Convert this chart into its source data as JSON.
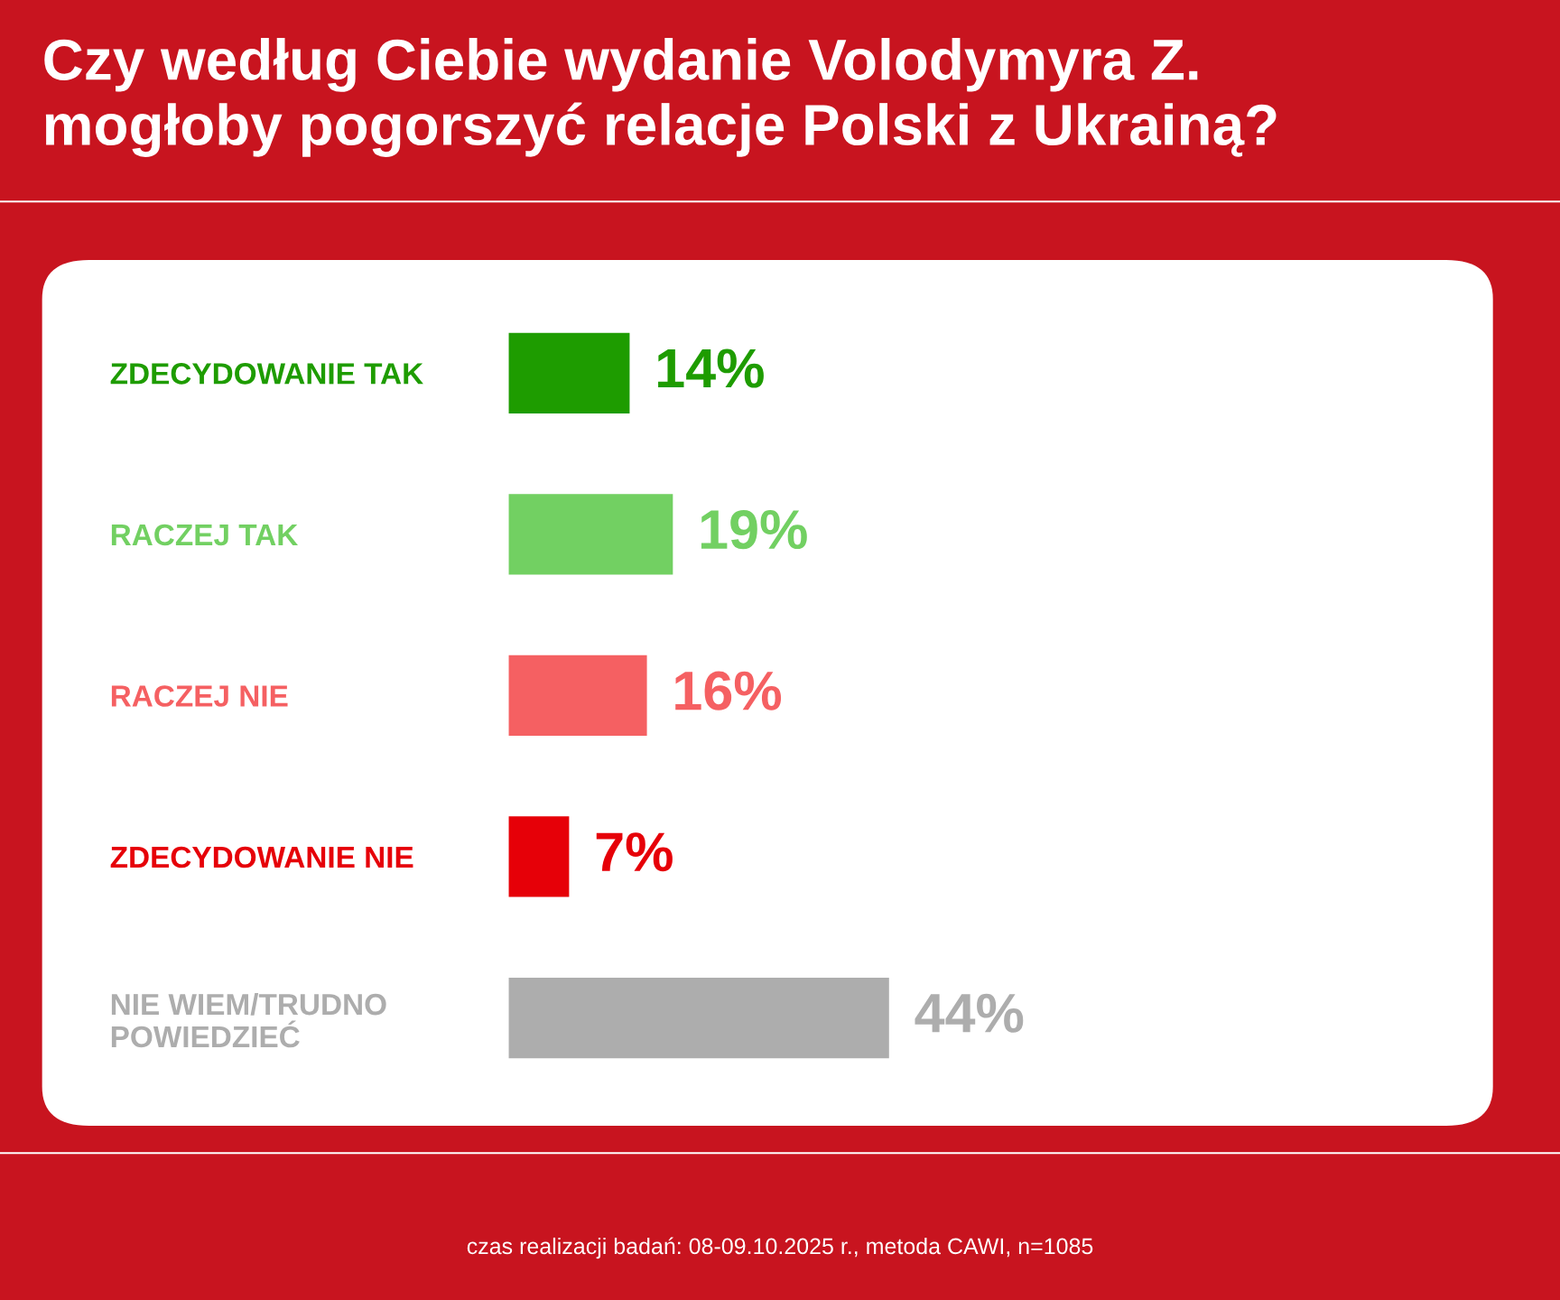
{
  "chart_data": {
    "type": "bar",
    "orientation": "horizontal",
    "title": "Czy według Ciebie wydanie Volodymyra Z.\nmogłoby pogorszyć relacje Polski z Ukrainą?",
    "categories": [
      "ZDECYDOWANIE TAK",
      "RACZEJ TAK",
      "RACZEJ NIE",
      "ZDECYDOWANIE NIE",
      "NIE WIEM/TRUDNO\nPOWIEDZIEĆ"
    ],
    "values": [
      14,
      19,
      16,
      7,
      44
    ],
    "colors": [
      "#1e9c00",
      "#72d062",
      "#f56062",
      "#e60008",
      "#adadad"
    ],
    "value_labels": [
      "14%",
      "19%",
      "16%",
      "7%",
      "44%"
    ],
    "annotations": [
      "czas realizacji badań: 08-09.10.2025 r., metoda CAWI, n=1085"
    ],
    "grid": false,
    "legend": false
  }
}
